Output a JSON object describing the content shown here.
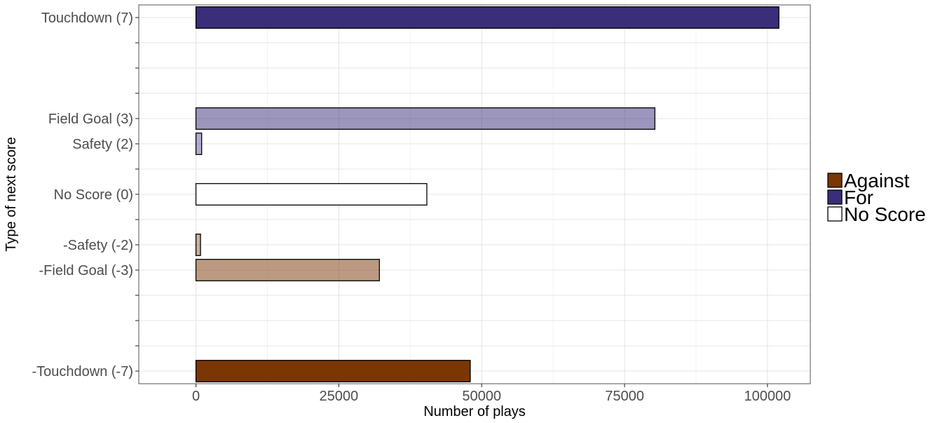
{
  "chart_data": {
    "type": "bar",
    "orientation": "horizontal",
    "title": "",
    "xlabel": "Number of plays",
    "ylabel": "Type of next score",
    "xlim": [
      -10000,
      107500
    ],
    "x_ticks": [
      0,
      25000,
      50000,
      75000,
      100000
    ],
    "y_values": [
      -7,
      -6,
      -5,
      -4,
      -3,
      -2,
      -1,
      0,
      1,
      2,
      3,
      4,
      5,
      6,
      7
    ],
    "categories": [
      {
        "label": "Touchdown (7)",
        "y": 7,
        "value": 102000,
        "group": "For",
        "fill": "#3a2d7a",
        "opacity": 1.0
      },
      {
        "label": "Field Goal (3)",
        "y": 3,
        "value": 80300,
        "group": "For",
        "fill": "#3a2d7a",
        "opacity": 0.5
      },
      {
        "label": "Safety (2)",
        "y": 2,
        "value": 1000,
        "group": "For",
        "fill": "#3a2d7a",
        "opacity": 0.4
      },
      {
        "label": "No Score (0)",
        "y": 0,
        "value": 40400,
        "group": "No Score",
        "fill": "#ffffff",
        "opacity": 1.0
      },
      {
        "label": "-Safety (-2)",
        "y": -2,
        "value": 800,
        "group": "Against",
        "fill": "#7a3603",
        "opacity": 0.4
      },
      {
        "label": "-Field Goal (-3)",
        "y": -3,
        "value": 32100,
        "group": "Against",
        "fill": "#7a3603",
        "opacity": 0.5
      },
      {
        "label": "-Touchdown (-7)",
        "y": -7,
        "value": 48000,
        "group": "Against",
        "fill": "#7a3603",
        "opacity": 1.0
      }
    ],
    "legend": {
      "placement": "right",
      "entries": [
        {
          "label": "Against",
          "color": "#7a3603"
        },
        {
          "label": "For",
          "color": "#3a2d7a"
        },
        {
          "label": "No Score",
          "color": "#ffffff"
        }
      ]
    },
    "grid": true
  }
}
